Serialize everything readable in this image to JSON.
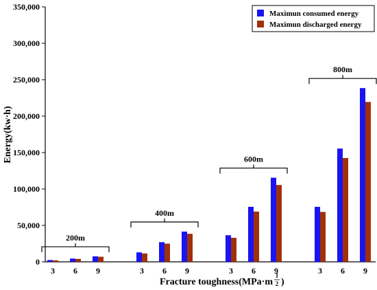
{
  "chart_data": {
    "type": "bar",
    "xlabel": "Fracture toughness(MPa·m",
    "xlabel_exponent_num": "1",
    "xlabel_exponent_den": "2",
    "xlabel_close": ")",
    "ylabel": "Energy(kw·h)",
    "ylim": [
      0,
      350000
    ],
    "yticks": [
      0,
      50000,
      100000,
      150000,
      200000,
      250000,
      300000,
      350000
    ],
    "ytick_labels": [
      "0",
      "50,000",
      "100,000",
      "150,000",
      "200,000",
      "250,000",
      "300,000",
      "350,000"
    ],
    "grid": false,
    "legend_position": "top-right",
    "series": [
      {
        "name": "Maximun consumed energy",
        "color": "#1a14f0"
      },
      {
        "name": "Maximun discharged energy",
        "color": "#a0300a"
      }
    ],
    "groups": [
      {
        "label": "200m",
        "categories": [
          "3",
          "6",
          "9"
        ],
        "values": [
          [
            2500,
            4500,
            7500
          ],
          [
            2000,
            4000,
            7000
          ]
        ]
      },
      {
        "label": "400m",
        "categories": [
          "3",
          "6",
          "9"
        ],
        "values": [
          [
            13000,
            27000,
            41500
          ],
          [
            11500,
            25000,
            38500
          ]
        ]
      },
      {
        "label": "600m",
        "categories": [
          "3",
          "6",
          "9"
        ],
        "values": [
          [
            36500,
            75500,
            115500
          ],
          [
            33000,
            69000,
            105500
          ]
        ]
      },
      {
        "label": "800m",
        "categories": [
          "3",
          "6",
          "9"
        ],
        "values": [
          [
            75500,
            155500,
            238500
          ],
          [
            68500,
            142500,
            219500
          ]
        ]
      }
    ]
  }
}
